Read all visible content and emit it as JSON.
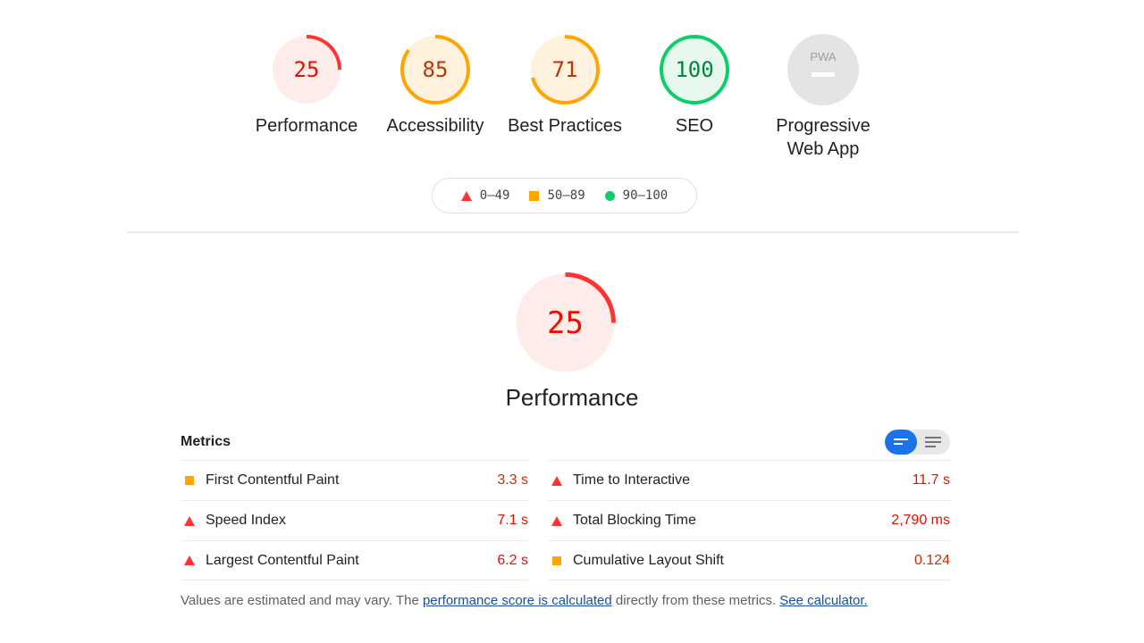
{
  "gauges": [
    {
      "score": "25",
      "label": "Performance",
      "color": "#f33",
      "bg": "#fdecea",
      "fraction": 0.25
    },
    {
      "score": "85",
      "label": "Accessibility",
      "color": "#ffa400",
      "bg": "#fff3e0",
      "fraction": 0.85
    },
    {
      "score": "71",
      "label": "Best Practices",
      "color": "#ffa400",
      "bg": "#fff3e0",
      "fraction": 0.71
    },
    {
      "score": "100",
      "label": "SEO",
      "color": "#0cce6b",
      "bg": "#e7f8ee",
      "fraction": 1.0
    },
    {
      "score": "PWA",
      "label_line1": "Progressive",
      "label_line2": "Web App",
      "color": "#9e9e9e",
      "bg": "#e4e4e4"
    }
  ],
  "legend": {
    "fail": "0–49",
    "average": "50–89",
    "pass": "90–100"
  },
  "main_gauge": {
    "score": "25",
    "fraction": 0.25,
    "color": "#f33",
    "bg": "#fdecea"
  },
  "main_title": "Performance",
  "metrics_header": "Metrics",
  "metrics_left": [
    {
      "name": "First Contentful Paint",
      "value": "3.3 s",
      "rating": "average"
    },
    {
      "name": "Speed Index",
      "value": "7.1 s",
      "rating": "fail"
    },
    {
      "name": "Largest Contentful Paint",
      "value": "6.2 s",
      "rating": "fail"
    }
  ],
  "metrics_right": [
    {
      "name": "Time to Interactive",
      "value": "11.7 s",
      "rating": "fail"
    },
    {
      "name": "Total Blocking Time",
      "value": "2,790 ms",
      "rating": "fail"
    },
    {
      "name": "Cumulative Layout Shift",
      "value": "0.124",
      "rating": "average"
    }
  ],
  "footnote": {
    "text_before": "Values are estimated and may vary. The ",
    "link1": "performance score is calculated",
    "text_middle": " directly from these metrics. ",
    "link2": "See calculator."
  }
}
